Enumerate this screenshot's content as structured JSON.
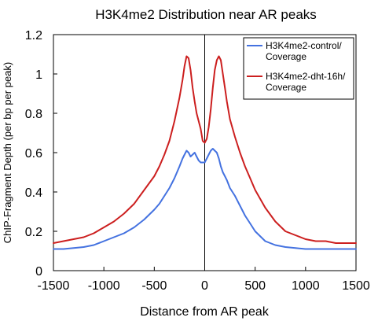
{
  "chart_data": {
    "type": "line",
    "title": "H3K4me2 Distribution near AR peaks",
    "xlabel": "Distance from AR peak",
    "ylabel": "ChIP-Fragment Depth (per bp per peak)",
    "xlim": [
      -1500,
      1500
    ],
    "ylim": [
      0,
      1.2
    ],
    "xticks": [
      -1500,
      -1000,
      -500,
      0,
      500,
      1000,
      1500
    ],
    "xtick_labels": [
      "-1500",
      "-1000",
      "-500",
      "0",
      "500",
      "1000",
      "1500"
    ],
    "yticks": [
      0,
      0.2,
      0.4,
      0.6,
      0.8,
      1,
      1.2
    ],
    "ytick_labels": [
      "0",
      "0.2",
      "0.4",
      "0.6",
      "0.8",
      "1",
      "1.2"
    ],
    "grid": false,
    "legend_position": "top-right",
    "x": [
      -1500,
      -1400,
      -1300,
      -1200,
      -1100,
      -1000,
      -900,
      -800,
      -700,
      -600,
      -500,
      -450,
      -400,
      -350,
      -300,
      -250,
      -220,
      -200,
      -180,
      -160,
      -140,
      -120,
      -100,
      -80,
      -60,
      -40,
      -20,
      0,
      20,
      40,
      60,
      80,
      100,
      120,
      140,
      160,
      180,
      200,
      220,
      250,
      300,
      350,
      400,
      450,
      500,
      600,
      700,
      800,
      900,
      1000,
      1100,
      1200,
      1300,
      1400,
      1500
    ],
    "series": [
      {
        "name": "H3K4me2-control/\nCoverage",
        "color": "#4472e0",
        "values": [
          0.11,
          0.11,
          0.115,
          0.12,
          0.13,
          0.15,
          0.17,
          0.19,
          0.22,
          0.26,
          0.31,
          0.34,
          0.38,
          0.42,
          0.47,
          0.53,
          0.57,
          0.59,
          0.61,
          0.6,
          0.58,
          0.59,
          0.6,
          0.58,
          0.56,
          0.55,
          0.55,
          0.55,
          0.57,
          0.59,
          0.61,
          0.62,
          0.61,
          0.6,
          0.57,
          0.53,
          0.5,
          0.48,
          0.46,
          0.42,
          0.38,
          0.33,
          0.28,
          0.24,
          0.2,
          0.15,
          0.13,
          0.12,
          0.115,
          0.11,
          0.11,
          0.11,
          0.11,
          0.11,
          0.11
        ]
      },
      {
        "name": "H3K4me2-dht-16h/\nCoverage",
        "color": "#cc1f1f",
        "values": [
          0.14,
          0.15,
          0.16,
          0.17,
          0.19,
          0.22,
          0.25,
          0.29,
          0.34,
          0.41,
          0.48,
          0.53,
          0.59,
          0.66,
          0.76,
          0.88,
          0.97,
          1.04,
          1.09,
          1.08,
          1.02,
          0.93,
          0.86,
          0.8,
          0.76,
          0.72,
          0.66,
          0.65,
          0.67,
          0.73,
          0.82,
          0.93,
          1.02,
          1.07,
          1.09,
          1.07,
          1.0,
          0.93,
          0.86,
          0.77,
          0.68,
          0.6,
          0.53,
          0.47,
          0.41,
          0.32,
          0.25,
          0.2,
          0.18,
          0.16,
          0.15,
          0.15,
          0.14,
          0.14,
          0.14
        ]
      }
    ]
  }
}
